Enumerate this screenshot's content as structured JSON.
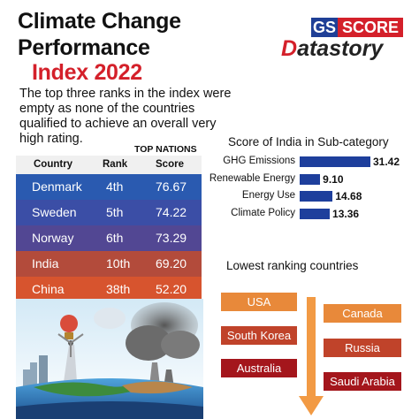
{
  "title": {
    "line1": "Climate Change",
    "line2": "Performance",
    "line3": "Index 2022"
  },
  "intro": "The top three ranks in the index were empty as none of the countries qualified to achieve an overall very high rating.",
  "brand": {
    "gs": "GS",
    "score": "SCORE",
    "datastory_d": "D",
    "datastory_rest": "atastory"
  },
  "table": {
    "caption": "TOP NATIONS",
    "headers": [
      "Country",
      "Rank",
      "Score"
    ],
    "rows": [
      {
        "country": "Denmark",
        "rank": "4th",
        "score": "76.67",
        "color": "#2a5ab0"
      },
      {
        "country": "Sweden",
        "rank": "5th",
        "score": "74.22",
        "color": "#3b4ea6"
      },
      {
        "country": "Norway",
        "rank": "6th",
        "score": "73.29",
        "color": "#524793"
      },
      {
        "country": "India",
        "rank": "10th",
        "score": "69.20",
        "color": "#b34b3b"
      },
      {
        "country": "China",
        "rank": "38th",
        "score": "52.20",
        "color": "#d7542e"
      }
    ]
  },
  "india_subcategory": {
    "title": "Score of India in Sub-category",
    "items": [
      {
        "label": "GHG Emissions",
        "value": "31.42",
        "score": 31.42
      },
      {
        "label": "Renewable Energy",
        "value": "9.10",
        "score": 9.1
      },
      {
        "label": "Energy Use",
        "value": "14.68",
        "score": 14.68
      },
      {
        "label": "Climate Policy",
        "value": "13.36",
        "score": 13.36
      }
    ],
    "bar_color": "#1e3f9c"
  },
  "lowest": {
    "title": "Lowest ranking countries",
    "countries": [
      "USA",
      "Canada",
      "South Korea",
      "Russia",
      "Australia",
      "Saudi Arabia"
    ],
    "colors": {
      "orange": "#e8893a",
      "brick": "#c0432a",
      "dark_red": "#a4161c"
    }
  },
  "colors": {
    "accent_red": "#d4202a",
    "gs_blue": "#1f3f96"
  }
}
